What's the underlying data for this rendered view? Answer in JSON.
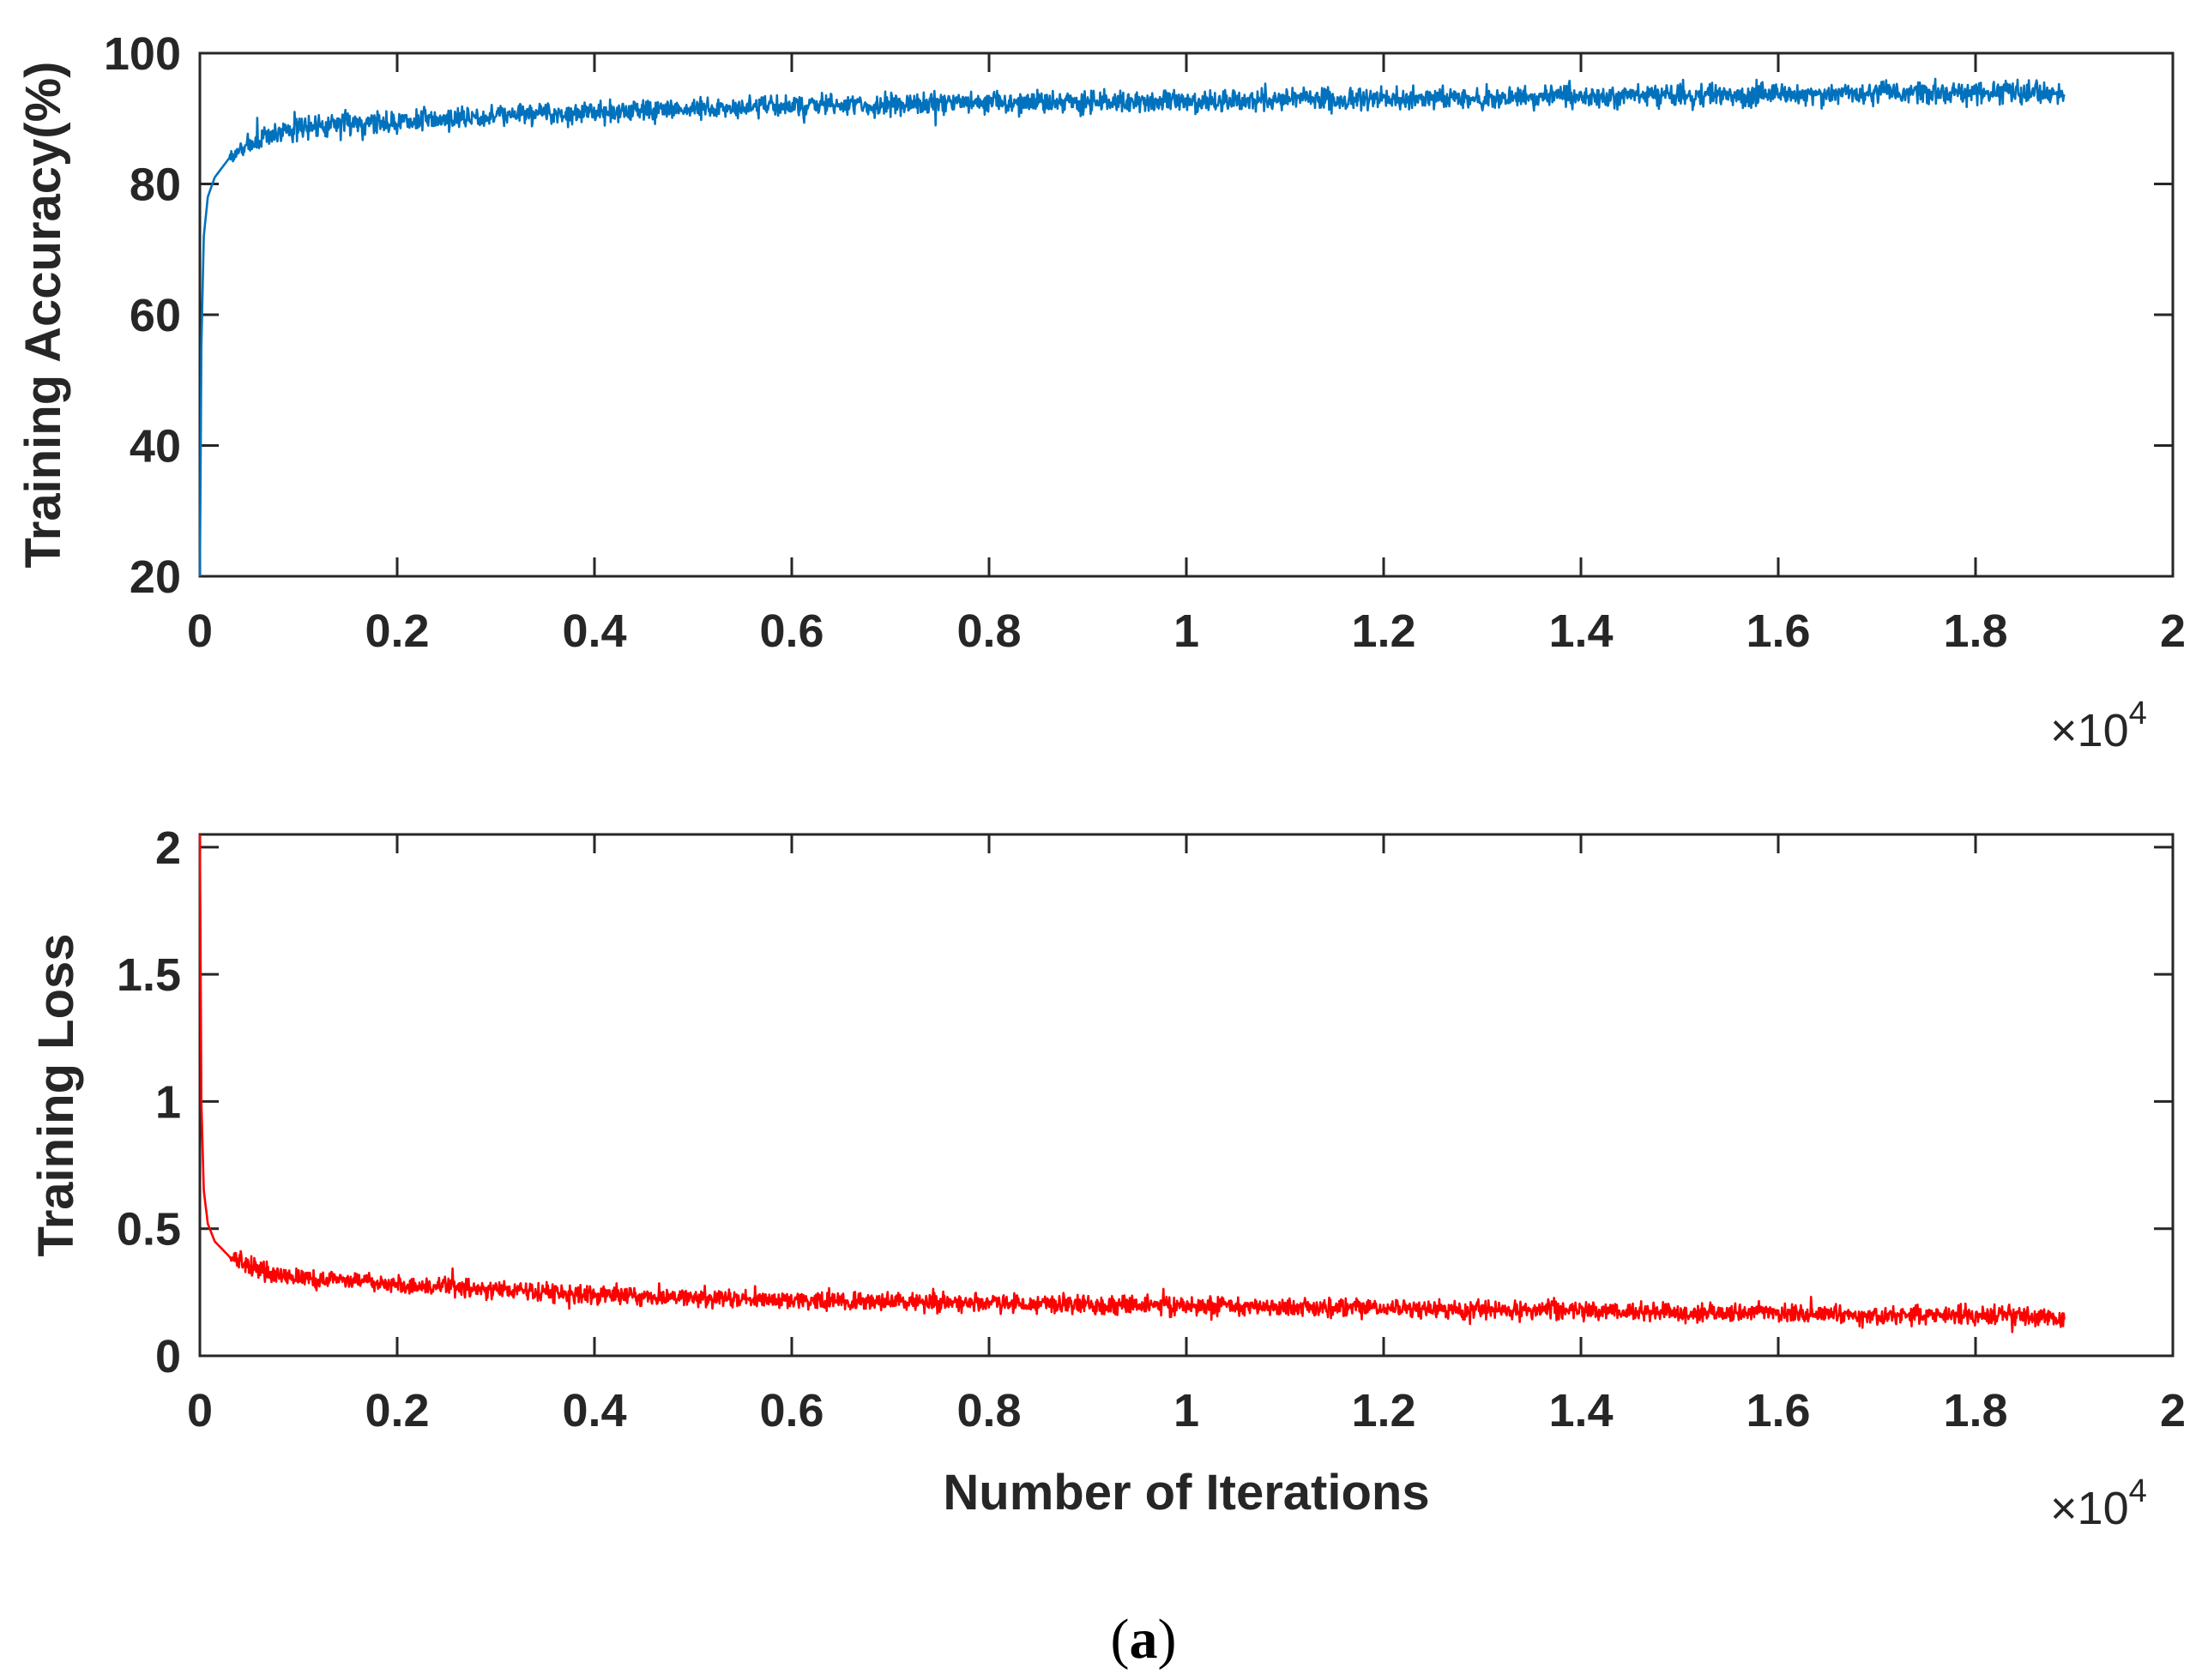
{
  "figure": {
    "caption_open": "(",
    "caption_letter": "a",
    "caption_close": ")"
  },
  "chart_data": [
    {
      "type": "line",
      "title": "",
      "xlabel": "",
      "ylabel": "Training Accuracy(%)",
      "xlim": [
        0,
        20000
      ],
      "ylim": [
        20,
        100
      ],
      "x_ticks": [
        0,
        2000,
        4000,
        6000,
        8000,
        10000,
        12000,
        14000,
        16000,
        18000,
        20000
      ],
      "x_tick_labels": [
        "0",
        "0.2",
        "0.4",
        "0.6",
        "0.8",
        "1",
        "1.2",
        "1.4",
        "1.6",
        "1.8",
        "2"
      ],
      "y_ticks": [
        20,
        40,
        60,
        80,
        100
      ],
      "y_tick_labels": [
        "20",
        "40",
        "60",
        "80",
        "100"
      ],
      "x_multiplier_base": "×10",
      "x_multiplier_exp": "4",
      "series": [
        {
          "name": "Training Accuracy",
          "color": "#0072BD",
          "x": [
            0,
            15,
            40,
            80,
            150,
            300,
            500,
            800,
            1200,
            1600,
            2000,
            3000,
            4000,
            5000,
            6000,
            7000,
            8000,
            9000,
            10000,
            11000,
            12000,
            13000,
            14000,
            15000,
            16000,
            17000,
            18000,
            18900
          ],
          "y": [
            20,
            55,
            72,
            78,
            81,
            84,
            86,
            88,
            89,
            89.5,
            89.5,
            90.5,
            91,
            91.5,
            92,
            92,
            92.5,
            92.5,
            92.5,
            93,
            93,
            93,
            93.5,
            93.5,
            93.5,
            94,
            94,
            94
          ],
          "noise_amplitude": 1.6
        }
      ]
    },
    {
      "type": "line",
      "title": "",
      "xlabel": "Number of Iterations",
      "ylabel": "Training Loss",
      "xlim": [
        0,
        20000
      ],
      "ylim": [
        0,
        2.05
      ],
      "x_ticks": [
        0,
        2000,
        4000,
        6000,
        8000,
        10000,
        12000,
        14000,
        16000,
        18000,
        20000
      ],
      "x_tick_labels": [
        "0",
        "0.2",
        "0.4",
        "0.6",
        "0.8",
        "1",
        "1.2",
        "1.4",
        "1.6",
        "1.8",
        "2"
      ],
      "y_ticks": [
        0,
        0.5,
        1,
        1.5,
        2
      ],
      "y_tick_labels": [
        "0",
        "0.5",
        "1",
        "1.5",
        "2"
      ],
      "x_multiplier_base": "×10",
      "x_multiplier_exp": "4",
      "series": [
        {
          "name": "Training Loss",
          "color": "#FF0000",
          "x": [
            0,
            15,
            40,
            80,
            150,
            300,
            500,
            800,
            1200,
            1600,
            2000,
            3000,
            4000,
            5000,
            6000,
            7000,
            8000,
            9000,
            10000,
            11000,
            12000,
            13000,
            14000,
            15000,
            16000,
            17000,
            18000,
            18900
          ],
          "y": [
            2.05,
            1.0,
            0.65,
            0.52,
            0.45,
            0.39,
            0.35,
            0.32,
            0.3,
            0.29,
            0.28,
            0.26,
            0.24,
            0.23,
            0.22,
            0.21,
            0.21,
            0.2,
            0.2,
            0.19,
            0.19,
            0.18,
            0.18,
            0.17,
            0.17,
            0.16,
            0.16,
            0.15
          ],
          "noise_amplitude": 0.035
        }
      ]
    }
  ]
}
